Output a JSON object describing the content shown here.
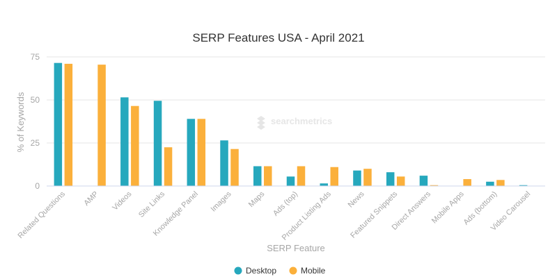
{
  "chart_data": {
    "type": "bar",
    "title": "SERP Features USA - April 2021",
    "xlabel": "SERP Feature",
    "ylabel": "% of Keywords",
    "ylim": [
      0,
      75
    ],
    "yticks": [
      0,
      25,
      50,
      75
    ],
    "grid": true,
    "legend_position": "bottom-center",
    "categories": [
      "Related Questions",
      "AMP",
      "Videos",
      "Site Links",
      "Knowledge Panel",
      "Images",
      "Maps",
      "Ads (top)",
      "Product Listing Ads",
      "News",
      "Featured Snippets",
      "Direct Answers",
      "Mobile Apps",
      "Ads (bottom)",
      "Video Carousel"
    ],
    "series": [
      {
        "name": "Desktop",
        "color": "#26a8bd",
        "values": [
          71.5,
          0,
          51.5,
          49.5,
          39,
          26.5,
          11.5,
          5.5,
          1.5,
          9,
          8,
          6,
          0,
          2.5,
          0.5
        ]
      },
      {
        "name": "Mobile",
        "color": "#fbb03b",
        "values": [
          71,
          70.5,
          46.5,
          22.5,
          39,
          21.5,
          11.5,
          11.5,
          11,
          10,
          5.5,
          0.5,
          4,
          3.5,
          0
        ]
      }
    ]
  },
  "watermark": {
    "text": "searchmetrics"
  }
}
